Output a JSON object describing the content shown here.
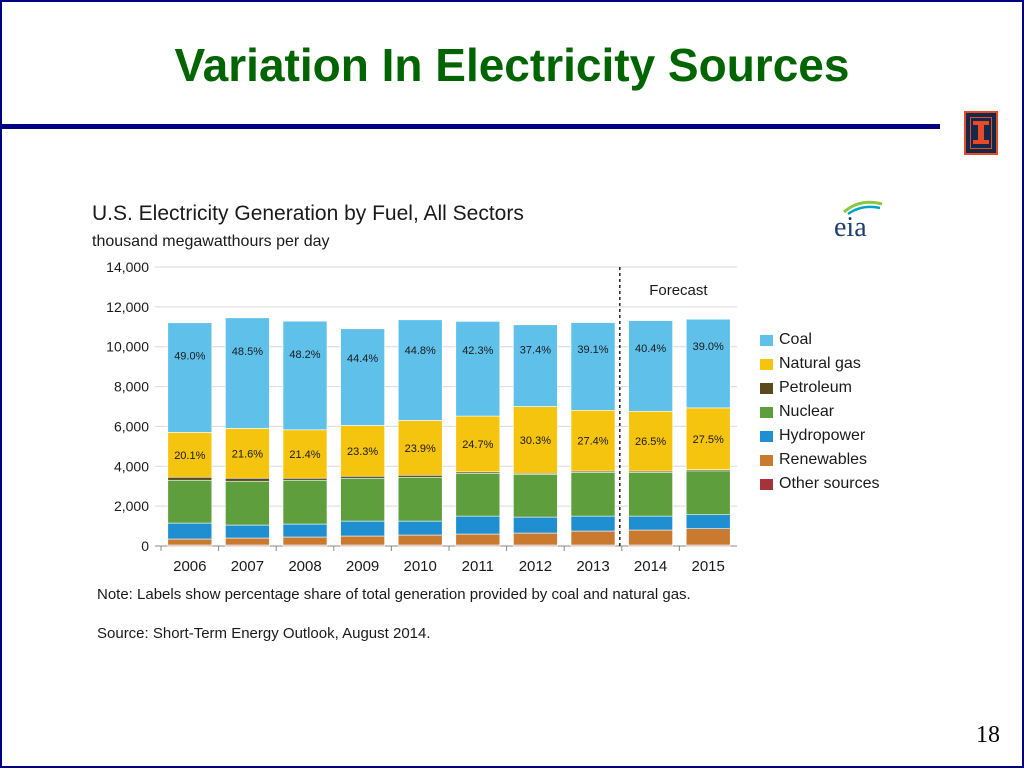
{
  "slide": {
    "title": "Variation In Electricity Sources",
    "page_number": "18"
  },
  "logos": {
    "illinois_mark": "I",
    "eia_wordmark": "eia"
  },
  "chart_data": {
    "type": "bar",
    "title": "U.S. Electricity Generation by Fuel, All Sectors",
    "subtitle": "thousand megawatthours per day",
    "xlabel": "",
    "ylabel": "",
    "ylim": [
      0,
      14000
    ],
    "yticks": [
      "0",
      "2,000",
      "4,000",
      "6,000",
      "8,000",
      "10,000",
      "12,000",
      "14,000"
    ],
    "ytick_values": [
      0,
      2000,
      4000,
      6000,
      8000,
      10000,
      12000,
      14000
    ],
    "categories": [
      "2006",
      "2007",
      "2008",
      "2009",
      "2010",
      "2011",
      "2012",
      "2013",
      "2014",
      "2015"
    ],
    "forecast_label": "Forecast",
    "forecast_start": "2014",
    "grid": true,
    "legend_position": "right",
    "series": [
      {
        "name": "Other sources",
        "color": "#a6323c",
        "values": [
          50,
          50,
          50,
          50,
          50,
          50,
          50,
          50,
          50,
          50
        ]
      },
      {
        "name": "Renewables",
        "color": "#c97a2f",
        "values": [
          300,
          350,
          400,
          450,
          500,
          550,
          600,
          700,
          750,
          820
        ]
      },
      {
        "name": "Hydropower",
        "color": "#1f8fd1",
        "values": [
          800,
          650,
          650,
          750,
          700,
          900,
          800,
          750,
          700,
          700
        ]
      },
      {
        "name": "Nuclear",
        "color": "#5f9e3c",
        "values": [
          2150,
          2200,
          2200,
          2150,
          2200,
          2150,
          2150,
          2200,
          2200,
          2200
        ]
      },
      {
        "name": "Petroleum",
        "color": "#5c4a1c",
        "values": [
          150,
          150,
          100,
          100,
          100,
          70,
          50,
          60,
          60,
          60
        ]
      },
      {
        "name": "Natural gas",
        "color": "#f5c40f",
        "values": [
          2250,
          2500,
          2430,
          2550,
          2750,
          2800,
          3350,
          3050,
          3000,
          3100
        ]
      },
      {
        "name": "Coal",
        "color": "#5fc0ea",
        "values": [
          5500,
          5550,
          5450,
          4850,
          5050,
          4750,
          4100,
          4400,
          4550,
          4450
        ]
      }
    ],
    "legend": [
      "Coal",
      "Natural gas",
      "Petroleum",
      "Nuclear",
      "Hydropower",
      "Renewables",
      "Other sources"
    ],
    "coal_share_labels": [
      "49.0%",
      "48.5%",
      "48.2%",
      "44.4%",
      "44.8%",
      "42.3%",
      "37.4%",
      "39.1%",
      "40.4%",
      "39.0%"
    ],
    "gas_share_labels": [
      "20.1%",
      "21.6%",
      "21.4%",
      "23.3%",
      "23.9%",
      "24.7%",
      "30.3%",
      "27.4%",
      "26.5%",
      "27.5%"
    ]
  },
  "notes": {
    "note": "Note: Labels show percentage share of total generation provided by coal and natural gas.",
    "source": "Source: Short-Term Energy Outlook, August 2014."
  }
}
